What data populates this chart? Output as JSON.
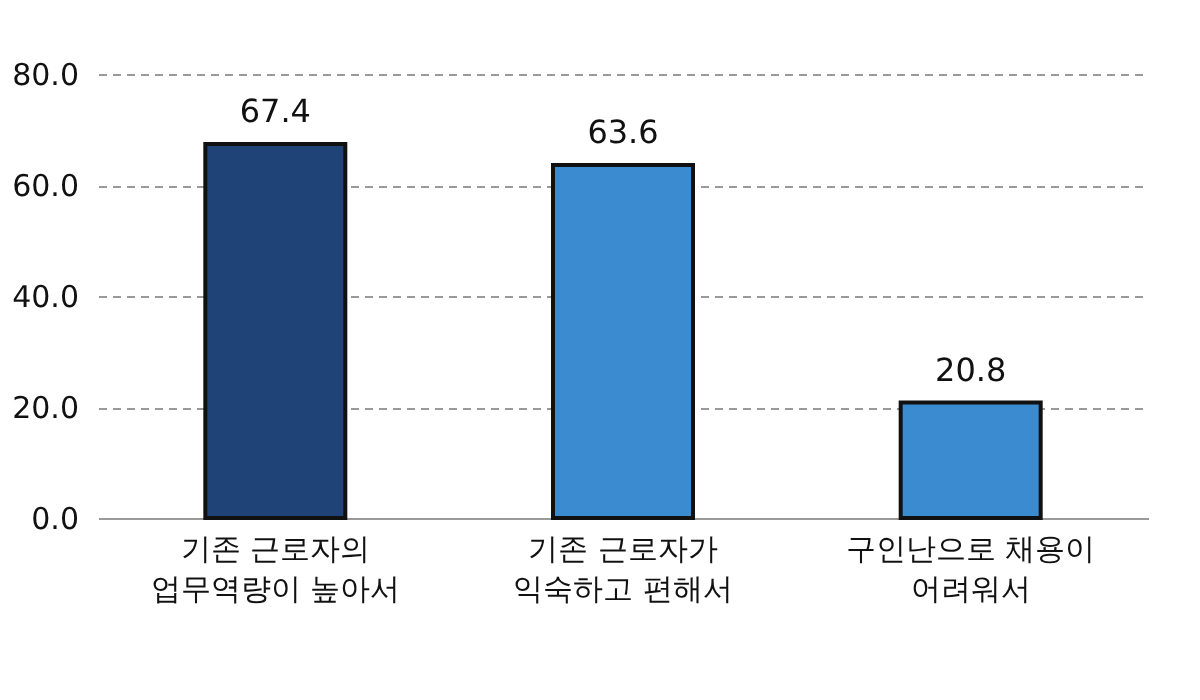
{
  "chart_data": {
    "type": "bar",
    "categories": [
      "기존 근로자의\n업무역량이 높아서",
      "기존 근로자가\n익숙하고 편해서",
      "구인난으로 채용이\n어려워서"
    ],
    "values": [
      67.4,
      63.6,
      20.8
    ],
    "colors": [
      "#1f4277",
      "#3a8bd0",
      "#3a8bd0"
    ],
    "ylim": [
      0,
      80
    ],
    "yticks": [
      {
        "value": 0,
        "label": "0.0"
      },
      {
        "value": 20,
        "label": "20.0"
      },
      {
        "value": 40,
        "label": "40.0"
      },
      {
        "value": 60,
        "label": "60.0"
      },
      {
        "value": 80,
        "label": "80.0"
      }
    ],
    "grid": "y",
    "data_labels": true
  }
}
